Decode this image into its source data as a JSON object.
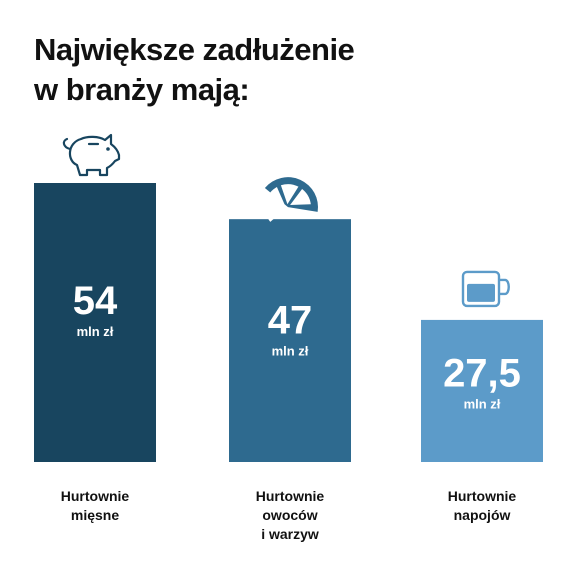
{
  "title_lines": [
    "Największe zadłużenie",
    "w branży mają:"
  ],
  "chart_data": {
    "type": "bar",
    "title": "Największe zadłużenie w branży mają:",
    "categories": [
      [
        "Hurtownie",
        "mięsne"
      ],
      [
        "Hurtownie",
        "owoców",
        "i warzyw"
      ],
      [
        "Hurtownie",
        "napojów"
      ]
    ],
    "values": [
      54,
      47,
      27.5
    ],
    "value_labels": [
      "54",
      "47",
      "27,5"
    ],
    "unit": "mln zł",
    "icons": [
      "piggy-bank-icon",
      "citrus-slice-icon",
      "coffee-cup-icon"
    ],
    "colors": [
      "#18455f",
      "#2e6a8f",
      "#5c9bc9"
    ],
    "ylim": [
      0,
      54
    ],
    "grid": false,
    "legend": "none"
  }
}
